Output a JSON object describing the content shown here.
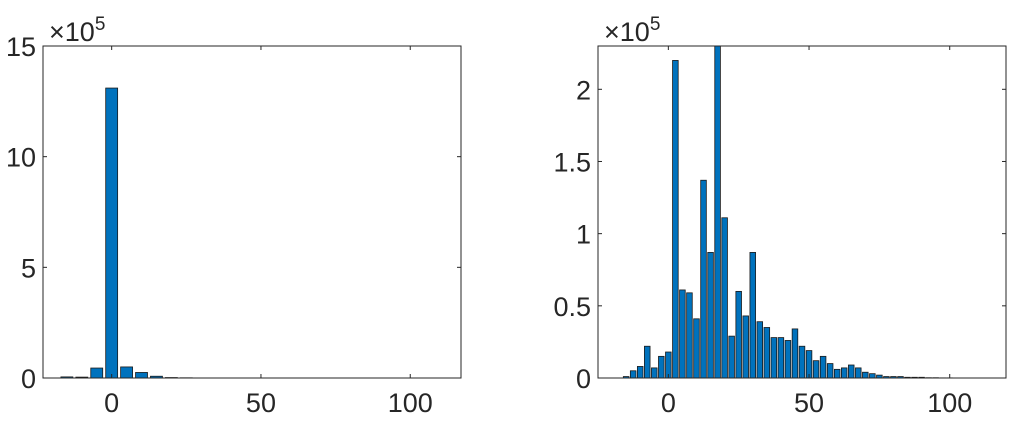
{
  "chart_data": [
    {
      "type": "bar",
      "title": "",
      "xlabel": "",
      "ylabel": "",
      "exponent_label": {
        "base": "×10",
        "power": "5"
      },
      "bar_color": "#0072BD",
      "xlim": [
        -23,
        117
      ],
      "ylim": [
        0,
        15
      ],
      "bin_width": 5,
      "xticks": [
        0,
        50,
        100
      ],
      "yticks": [
        0,
        5,
        10,
        15
      ],
      "x": [
        -20,
        -15,
        -10,
        -5,
        0,
        5,
        10,
        15,
        20,
        25,
        30,
        35,
        40,
        45,
        50,
        55,
        60,
        65,
        70,
        75,
        80,
        85,
        90,
        95,
        100,
        105,
        110,
        115
      ],
      "values": [
        0,
        0.05,
        0.04,
        0.45,
        13.1,
        0.5,
        0.25,
        0.08,
        0.02,
        0.01,
        0,
        0,
        0,
        0,
        0,
        0,
        0,
        0,
        0,
        0,
        0,
        0,
        0,
        0,
        0,
        0,
        0,
        0
      ]
    },
    {
      "type": "bar",
      "title": "",
      "xlabel": "",
      "ylabel": "",
      "exponent_label": {
        "base": "×10",
        "power": "5"
      },
      "bar_color": "#0072BD",
      "xlim": [
        -25,
        120
      ],
      "ylim": [
        0,
        2.3
      ],
      "bin_width": 2.5,
      "xticks": [
        0,
        50,
        100
      ],
      "yticks": [
        0,
        0.5,
        1,
        1.5,
        2
      ],
      "x": [
        -15,
        -12.5,
        -10,
        -7.5,
        -5,
        -2.5,
        0,
        2.5,
        5,
        7.5,
        10,
        12.5,
        15,
        17.5,
        20,
        22.5,
        25,
        27.5,
        30,
        32.5,
        35,
        37.5,
        40,
        42.5,
        45,
        47.5,
        50,
        52.5,
        55,
        57.5,
        60,
        62.5,
        65,
        67.5,
        70,
        72.5,
        75,
        77.5,
        80,
        82.5,
        85,
        87.5,
        90,
        92.5,
        95,
        97.5,
        100,
        102.5,
        105,
        107.5,
        110,
        112.5,
        115
      ],
      "values": [
        0.01,
        0.05,
        0.08,
        0.22,
        0.07,
        0.15,
        0.18,
        2.2,
        0.61,
        0.59,
        0.41,
        1.37,
        0.87,
        2.3,
        1.11,
        0.29,
        0.6,
        0.43,
        0.87,
        0.39,
        0.35,
        0.28,
        0.28,
        0.26,
        0.34,
        0.22,
        0.19,
        0.12,
        0.15,
        0.1,
        0.06,
        0.07,
        0.09,
        0.07,
        0.04,
        0.03,
        0.02,
        0.01,
        0.01,
        0.01,
        0.005,
        0.005,
        0.005,
        0.002,
        0.002,
        0.001,
        0.001,
        0,
        0,
        0,
        0,
        0,
        0
      ]
    }
  ]
}
